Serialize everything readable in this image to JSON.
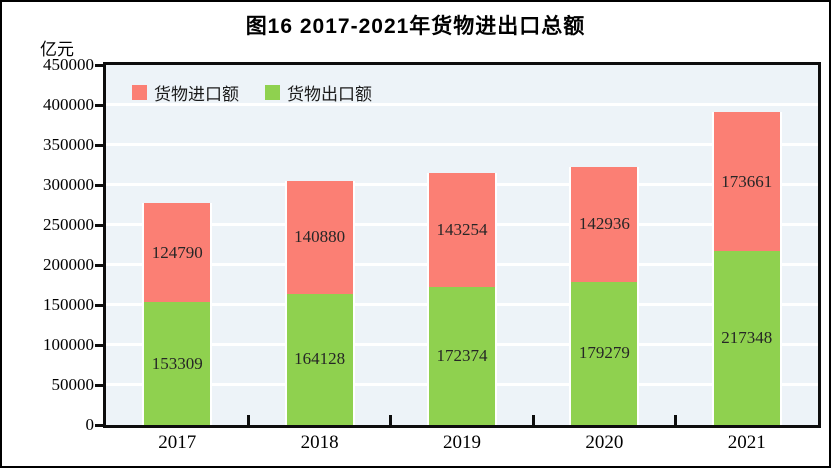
{
  "figure": {
    "title": "图16  2017-2021年货物进出口总额",
    "unit_label": "亿元"
  },
  "legend": [
    {
      "label": "货物进口额",
      "series": "import",
      "color": "#fb7f74"
    },
    {
      "label": "货物出口额",
      "series": "export",
      "color": "#8fd14f"
    }
  ],
  "chart_data": {
    "type": "bar",
    "stacked": true,
    "title": "图16  2017-2021年货物进出口总额",
    "ylabel": "亿元",
    "xlabel": "",
    "categories": [
      "2017",
      "2018",
      "2019",
      "2020",
      "2021"
    ],
    "series": [
      {
        "name": "货物出口额",
        "color": "#8fd14f",
        "values": [
          153309,
          164128,
          172374,
          179279,
          217348
        ]
      },
      {
        "name": "货物进口额",
        "color": "#fb7f74",
        "values": [
          124790,
          140880,
          143254,
          142936,
          173661
        ]
      }
    ],
    "totals": [
      278099,
      305008,
      315628,
      322215,
      391009
    ],
    "ylim": [
      0,
      450000
    ],
    "ytick_step": 50000,
    "yticks": [
      0,
      50000,
      100000,
      150000,
      200000,
      250000,
      300000,
      350000,
      400000,
      450000
    ],
    "grid": "horizontal-white-lines",
    "plot_bg": "#edf3f8",
    "legend_position": "top-left-inside",
    "value_labels": "centered-in-segment"
  }
}
